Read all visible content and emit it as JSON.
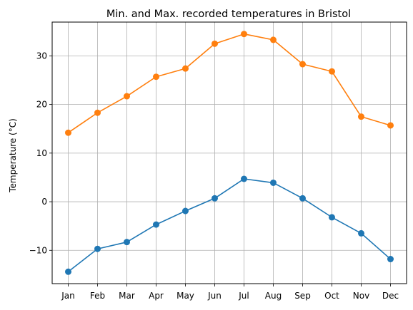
{
  "chart_data": {
    "type": "line",
    "title": "Min. and Max. recorded temperatures in Bristol",
    "xlabel": "",
    "ylabel": "Temperature (°C)",
    "categories": [
      "Jan",
      "Feb",
      "Mar",
      "Apr",
      "May",
      "Jun",
      "Jul",
      "Aug",
      "Sep",
      "Oct",
      "Nov",
      "Dec"
    ],
    "series": [
      {
        "color": "#1f77b4",
        "values": [
          -14.4,
          -9.7,
          -8.3,
          -4.7,
          -1.9,
          0.7,
          4.7,
          3.9,
          0.7,
          -3.2,
          -6.5,
          -11.8
        ]
      },
      {
        "color": "#ff7f0e",
        "values": [
          14.2,
          18.3,
          21.7,
          25.7,
          27.4,
          32.5,
          34.5,
          33.3,
          28.3,
          26.8,
          17.5,
          15.7
        ]
      }
    ],
    "ylim": [
      -16.85,
      36.95
    ],
    "yticks": [
      -10,
      0,
      10,
      20,
      30
    ],
    "ytick_labels": [
      "−10",
      "0",
      "10",
      "20",
      "30"
    ],
    "grid": true,
    "legend": "none"
  }
}
